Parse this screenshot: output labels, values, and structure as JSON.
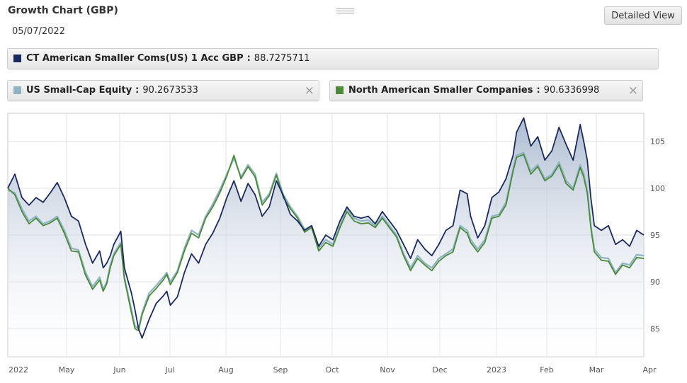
{
  "header": {
    "title": "Growth Chart (GBP)",
    "date": "05/07/2022",
    "detailed_view_label": "Detailed View"
  },
  "legend": {
    "main": {
      "name": "CT American Smaller Coms(US) 1 Acc GBP",
      "value": "88.7275711",
      "color": "#1b2a5e"
    },
    "series1": {
      "name": "US Small-Cap Equity",
      "value": "90.2673533",
      "color": "#8fb3c3",
      "close": "×"
    },
    "series2": {
      "name": "North American Smaller Companies",
      "value": "90.6336998",
      "color": "#4a8a3a",
      "close": "×"
    },
    "separator": ":"
  },
  "chart_data": {
    "type": "line",
    "title": "Growth Chart (GBP)",
    "x_tick_labels": [
      "2022",
      "May",
      "Jun",
      "Jul",
      "Aug",
      "Sep",
      "Oct",
      "Nov",
      "Dec",
      "2023",
      "Feb",
      "Mar",
      "Apr"
    ],
    "y_ticks": [
      85,
      90,
      95,
      100,
      105
    ],
    "ylim": [
      82,
      108
    ],
    "grid": true,
    "legend_position": "top",
    "series": [
      {
        "name": "CT American Smaller Coms(US) 1 Acc GBP",
        "color": "#1b2a5e",
        "fill": true,
        "points": [
          [
            0,
            100
          ],
          [
            0.2,
            101.5
          ],
          [
            0.4,
            99
          ],
          [
            0.6,
            98.2
          ],
          [
            0.8,
            99
          ],
          [
            1,
            98.5
          ],
          [
            1.2,
            99.5
          ],
          [
            1.4,
            100.6
          ],
          [
            1.6,
            99
          ],
          [
            1.8,
            97
          ],
          [
            2,
            96.5
          ],
          [
            2.2,
            94
          ],
          [
            2.4,
            92
          ],
          [
            2.6,
            93.3
          ],
          [
            2.7,
            91.5
          ],
          [
            2.8,
            92
          ],
          [
            2.9,
            92.8
          ],
          [
            3,
            94
          ],
          [
            3.2,
            95.4
          ],
          [
            3.3,
            91.5
          ],
          [
            3.5,
            88.8
          ],
          [
            3.6,
            87
          ],
          [
            3.7,
            85
          ],
          [
            3.8,
            84
          ],
          [
            3.9,
            85
          ],
          [
            4.0,
            86
          ],
          [
            4.2,
            87.7
          ],
          [
            4.4,
            88.5
          ],
          [
            4.5,
            89
          ],
          [
            4.6,
            87.5
          ],
          [
            4.8,
            88.4
          ],
          [
            5.0,
            91
          ],
          [
            5.2,
            93
          ],
          [
            5.4,
            92
          ],
          [
            5.6,
            94
          ],
          [
            5.8,
            95.2
          ],
          [
            6.0,
            96.8
          ],
          [
            6.2,
            99
          ],
          [
            6.4,
            100.8
          ],
          [
            6.6,
            98.6
          ],
          [
            6.8,
            100.5
          ],
          [
            7.0,
            99.3
          ],
          [
            7.2,
            97
          ],
          [
            7.4,
            98
          ],
          [
            7.6,
            100.8
          ],
          [
            7.8,
            99.2
          ],
          [
            8.0,
            97.2
          ],
          [
            8.2,
            96.5
          ],
          [
            8.4,
            95.5
          ],
          [
            8.6,
            96
          ],
          [
            8.8,
            93.8
          ],
          [
            9.0,
            95
          ],
          [
            9.2,
            94.5
          ],
          [
            9.4,
            96.5
          ],
          [
            9.6,
            98
          ],
          [
            9.8,
            97
          ],
          [
            10.0,
            96.8
          ],
          [
            10.2,
            97
          ],
          [
            10.4,
            96.2
          ],
          [
            10.6,
            97.5
          ],
          [
            10.8,
            96.5
          ],
          [
            11.0,
            95.5
          ],
          [
            11.2,
            94
          ],
          [
            11.4,
            92.5
          ],
          [
            11.6,
            94.5
          ],
          [
            11.8,
            93.5
          ],
          [
            12.0,
            92.8
          ],
          [
            12.2,
            94
          ],
          [
            12.4,
            95.5
          ],
          [
            12.6,
            96
          ],
          [
            12.8,
            99.8
          ],
          [
            13.0,
            99.4
          ],
          [
            13.1,
            97
          ],
          [
            13.3,
            94.7
          ],
          [
            13.5,
            96
          ],
          [
            13.7,
            99
          ],
          [
            13.9,
            99.6
          ],
          [
            14.1,
            101
          ],
          [
            14.3,
            103.5
          ],
          [
            14.4,
            106
          ],
          [
            14.6,
            107.5
          ],
          [
            14.8,
            104.5
          ],
          [
            15.0,
            105.5
          ],
          [
            15.2,
            103
          ],
          [
            15.4,
            104
          ],
          [
            15.6,
            106.5
          ],
          [
            15.8,
            104.7
          ],
          [
            16.0,
            103
          ],
          [
            16.2,
            106.8
          ],
          [
            16.3,
            105
          ],
          [
            16.4,
            103
          ],
          [
            16.5,
            99
          ],
          [
            16.6,
            96
          ],
          [
            16.8,
            95.5
          ],
          [
            17.0,
            96
          ],
          [
            17.2,
            94
          ],
          [
            17.4,
            94.5
          ],
          [
            17.6,
            93.8
          ],
          [
            17.8,
            95.5
          ],
          [
            18.0,
            95
          ]
        ]
      },
      {
        "name": "US Small-Cap Equity",
        "color": "#8fb3c3",
        "fill": false,
        "points": [
          [
            0,
            99.8
          ],
          [
            0.2,
            99.5
          ],
          [
            0.4,
            97.8
          ],
          [
            0.6,
            96.5
          ],
          [
            0.8,
            97
          ],
          [
            1,
            96.2
          ],
          [
            1.2,
            96.5
          ],
          [
            1.4,
            97
          ],
          [
            1.6,
            95.5
          ],
          [
            1.8,
            93.6
          ],
          [
            2,
            93.4
          ],
          [
            2.2,
            91
          ],
          [
            2.4,
            89.5
          ],
          [
            2.6,
            90.5
          ],
          [
            2.7,
            89.2
          ],
          [
            2.8,
            90
          ],
          [
            2.9,
            91.8
          ],
          [
            3,
            93
          ],
          [
            3.2,
            94.2
          ],
          [
            3.3,
            90.5
          ],
          [
            3.5,
            87
          ],
          [
            3.6,
            85.3
          ],
          [
            3.7,
            85
          ],
          [
            3.8,
            86.7
          ],
          [
            3.9,
            87.8
          ],
          [
            4.0,
            88.8
          ],
          [
            4.2,
            89.6
          ],
          [
            4.4,
            90.5
          ],
          [
            4.5,
            91
          ],
          [
            4.6,
            90
          ],
          [
            4.8,
            91.2
          ],
          [
            5.0,
            93.6
          ],
          [
            5.2,
            95.5
          ],
          [
            5.4,
            95
          ],
          [
            5.6,
            97
          ],
          [
            5.8,
            98.3
          ],
          [
            6.0,
            99.8
          ],
          [
            6.2,
            101.5
          ],
          [
            6.4,
            103.2
          ],
          [
            6.6,
            101.2
          ],
          [
            6.8,
            102.5
          ],
          [
            7.0,
            101.5
          ],
          [
            7.2,
            98.5
          ],
          [
            7.4,
            99.4
          ],
          [
            7.6,
            101.6
          ],
          [
            7.8,
            99.3
          ],
          [
            8.0,
            98
          ],
          [
            8.2,
            97
          ],
          [
            8.4,
            95.6
          ],
          [
            8.6,
            96
          ],
          [
            8.8,
            93.6
          ],
          [
            9.0,
            94.5
          ],
          [
            9.2,
            94
          ],
          [
            9.4,
            96
          ],
          [
            9.6,
            97.8
          ],
          [
            9.8,
            96.8
          ],
          [
            10.0,
            96.5
          ],
          [
            10.2,
            96.6
          ],
          [
            10.4,
            96
          ],
          [
            10.6,
            97
          ],
          [
            10.8,
            96
          ],
          [
            11.0,
            95
          ],
          [
            11.2,
            93
          ],
          [
            11.4,
            91.5
          ],
          [
            11.6,
            92.8
          ],
          [
            11.8,
            92
          ],
          [
            12.0,
            91.5
          ],
          [
            12.2,
            92.5
          ],
          [
            12.4,
            93
          ],
          [
            12.6,
            93.5
          ],
          [
            12.8,
            96
          ],
          [
            13.0,
            95.5
          ],
          [
            13.1,
            94.5
          ],
          [
            13.3,
            93.5
          ],
          [
            13.5,
            94.5
          ],
          [
            13.7,
            97
          ],
          [
            13.9,
            97.2
          ],
          [
            14.1,
            98.5
          ],
          [
            14.3,
            102
          ],
          [
            14.4,
            103.5
          ],
          [
            14.6,
            103.8
          ],
          [
            14.8,
            101.8
          ],
          [
            15.0,
            102.5
          ],
          [
            15.2,
            101
          ],
          [
            15.4,
            101.5
          ],
          [
            15.6,
            102.8
          ],
          [
            15.8,
            100.8
          ],
          [
            16.0,
            100
          ],
          [
            16.2,
            102.5
          ],
          [
            16.3,
            101.5
          ],
          [
            16.4,
            99.8
          ],
          [
            16.5,
            96
          ],
          [
            16.6,
            93.5
          ],
          [
            16.8,
            92.6
          ],
          [
            17.0,
            92.5
          ],
          [
            17.2,
            91
          ],
          [
            17.4,
            92
          ],
          [
            17.6,
            91.8
          ],
          [
            17.8,
            92.9
          ],
          [
            18.0,
            92.8
          ]
        ]
      },
      {
        "name": "North American Smaller Companies",
        "color": "#4a8a3a",
        "fill": false,
        "points": [
          [
            0,
            100
          ],
          [
            0.2,
            99.3
          ],
          [
            0.4,
            97.5
          ],
          [
            0.6,
            96.2
          ],
          [
            0.8,
            96.8
          ],
          [
            1,
            96
          ],
          [
            1.2,
            96.3
          ],
          [
            1.4,
            96.8
          ],
          [
            1.6,
            95.2
          ],
          [
            1.8,
            93.3
          ],
          [
            2,
            93.2
          ],
          [
            2.2,
            90.7
          ],
          [
            2.4,
            89.2
          ],
          [
            2.6,
            90.2
          ],
          [
            2.7,
            89
          ],
          [
            2.8,
            89.8
          ],
          [
            2.9,
            91.5
          ],
          [
            3,
            92.8
          ],
          [
            3.2,
            94
          ],
          [
            3.3,
            90.3
          ],
          [
            3.5,
            86.7
          ],
          [
            3.6,
            85
          ],
          [
            3.7,
            84.8
          ],
          [
            3.8,
            86.5
          ],
          [
            3.9,
            87.5
          ],
          [
            4.0,
            88.5
          ],
          [
            4.2,
            89.3
          ],
          [
            4.4,
            90.2
          ],
          [
            4.5,
            90.8
          ],
          [
            4.6,
            89.7
          ],
          [
            4.8,
            91
          ],
          [
            5.0,
            93.3
          ],
          [
            5.2,
            95.2
          ],
          [
            5.4,
            94.7
          ],
          [
            5.6,
            96.8
          ],
          [
            5.8,
            98
          ],
          [
            6.0,
            99.5
          ],
          [
            6.2,
            101.3
          ],
          [
            6.4,
            103.5
          ],
          [
            6.6,
            101
          ],
          [
            6.8,
            102.3
          ],
          [
            7.0,
            101.2
          ],
          [
            7.2,
            98.2
          ],
          [
            7.4,
            99.2
          ],
          [
            7.6,
            101.4
          ],
          [
            7.8,
            99
          ],
          [
            8.0,
            97.8
          ],
          [
            8.2,
            96.8
          ],
          [
            8.4,
            95.3
          ],
          [
            8.6,
            95.8
          ],
          [
            8.8,
            93.3
          ],
          [
            9.0,
            94.2
          ],
          [
            9.2,
            93.8
          ],
          [
            9.4,
            95.8
          ],
          [
            9.6,
            97.5
          ],
          [
            9.8,
            96.5
          ],
          [
            10.0,
            96.2
          ],
          [
            10.2,
            96.3
          ],
          [
            10.4,
            95.8
          ],
          [
            10.6,
            96.8
          ],
          [
            10.8,
            95.8
          ],
          [
            11.0,
            94.8
          ],
          [
            11.2,
            92.8
          ],
          [
            11.4,
            91.2
          ],
          [
            11.6,
            92.5
          ],
          [
            11.8,
            91.8
          ],
          [
            12.0,
            91.2
          ],
          [
            12.2,
            92.2
          ],
          [
            12.4,
            92.8
          ],
          [
            12.6,
            93.2
          ],
          [
            12.8,
            95.8
          ],
          [
            13.0,
            95.2
          ],
          [
            13.1,
            94.2
          ],
          [
            13.3,
            93.2
          ],
          [
            13.5,
            94.2
          ],
          [
            13.7,
            96.8
          ],
          [
            13.9,
            97
          ],
          [
            14.1,
            98.2
          ],
          [
            14.3,
            101.8
          ],
          [
            14.4,
            103.3
          ],
          [
            14.6,
            103.6
          ],
          [
            14.8,
            101.5
          ],
          [
            15.0,
            102.3
          ],
          [
            15.2,
            100.8
          ],
          [
            15.4,
            101.3
          ],
          [
            15.6,
            102.5
          ],
          [
            15.8,
            100.5
          ],
          [
            16.0,
            99.8
          ],
          [
            16.2,
            102.2
          ],
          [
            16.3,
            101.2
          ],
          [
            16.4,
            99.5
          ],
          [
            16.5,
            95.8
          ],
          [
            16.6,
            93.2
          ],
          [
            16.8,
            92.3
          ],
          [
            17.0,
            92.2
          ],
          [
            17.2,
            90.8
          ],
          [
            17.4,
            91.8
          ],
          [
            17.6,
            91.5
          ],
          [
            17.8,
            92.6
          ],
          [
            18.0,
            92.5
          ]
        ]
      }
    ]
  }
}
